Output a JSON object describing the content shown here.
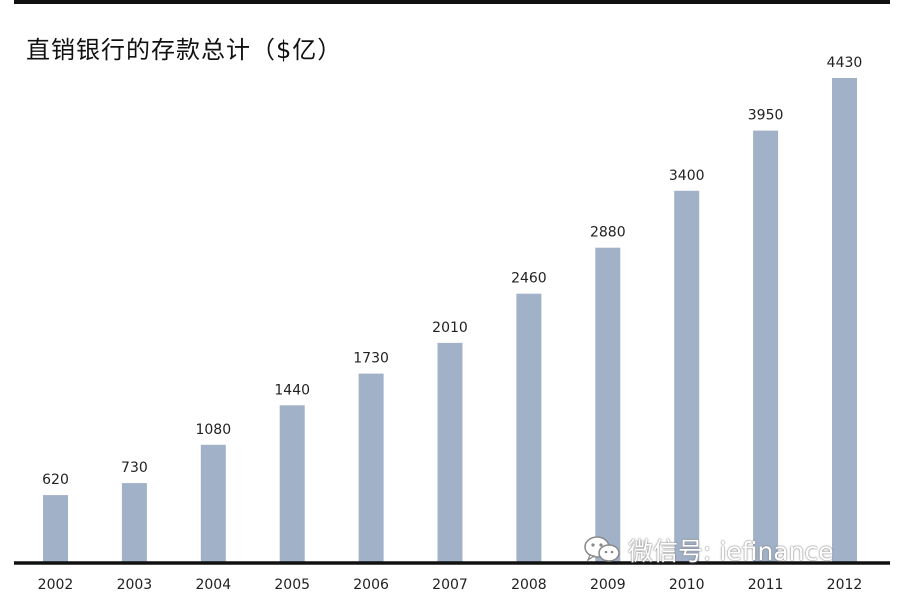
{
  "page": {
    "title": "直销银行的存款总计（$亿）",
    "watermark": "微信号: iefinance"
  },
  "colors": {
    "bar": "#a1b1c8",
    "axis": "#111111",
    "text": "#222222"
  },
  "chart_data": {
    "type": "bar",
    "title": "直销银行的存款总计（$亿）",
    "xlabel": "",
    "ylabel": "",
    "categories": [
      "2002",
      "2003",
      "2004",
      "2005",
      "2006",
      "2007",
      "2008",
      "2009",
      "2010",
      "2011",
      "2012"
    ],
    "values": [
      620,
      730,
      1080,
      1440,
      1730,
      2010,
      2460,
      2880,
      3400,
      3950,
      4430
    ],
    "data_labels": [
      "620",
      "730",
      "1080",
      "1440",
      "1730",
      "2010",
      "2460",
      "2880",
      "3400",
      "3950",
      "4430"
    ],
    "ylim": [
      0,
      4430
    ],
    "grid": false,
    "legend": "none"
  }
}
